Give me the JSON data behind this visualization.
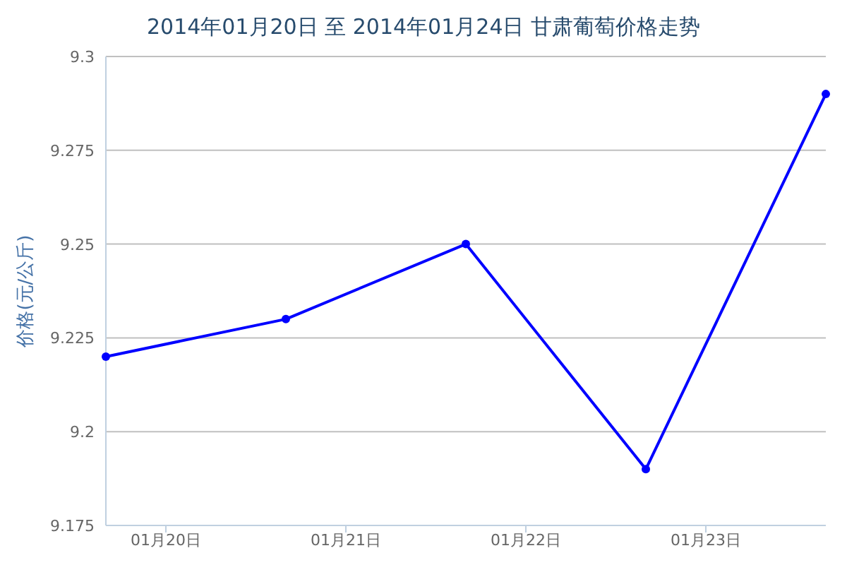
{
  "chart_data": {
    "type": "line",
    "title": "2014年01月20日 至 2014年01月24日 甘肃葡萄价格走势",
    "ylabel": "价格(元/公斤)",
    "x": [
      "2014-01-20",
      "2014-01-21",
      "2014-01-22",
      "2014-01-23",
      "2014-01-24"
    ],
    "series": [
      {
        "color": "#0000ff",
        "values": [
          9.22,
          9.23,
          9.25,
          9.19,
          9.29
        ]
      }
    ],
    "xlim": [
      "2014-01-20",
      "2014-01-24"
    ],
    "xticks": [
      {
        "value": "2014-01-20T08:00",
        "label": "01月20日"
      },
      {
        "value": "2014-01-21T08:00",
        "label": "01月21日"
      },
      {
        "value": "2014-01-22T08:00",
        "label": "01月22日"
      },
      {
        "value": "2014-01-23T08:00",
        "label": "01月23日"
      }
    ],
    "ylim": [
      9.175,
      9.3
    ],
    "yticks": [
      9.175,
      9.2,
      9.225,
      9.25,
      9.275,
      9.3
    ],
    "grid": "y",
    "marker": "circle",
    "line_style": "solid"
  }
}
